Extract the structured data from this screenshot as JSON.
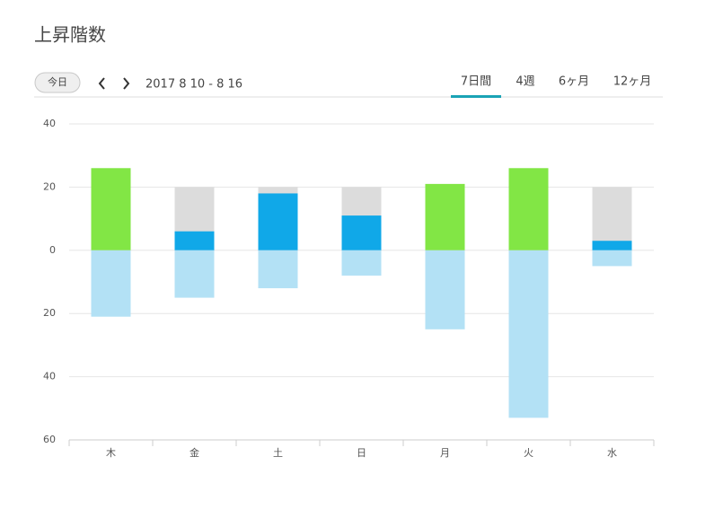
{
  "toolbar": {
    "today": "今日",
    "range": "2017 8 10 - 8 16",
    "tabs": [
      "7日間",
      "4週",
      "6ヶ月",
      "12ヶ月"
    ],
    "selected_tab": 0
  },
  "chart_data": {
    "type": "bar",
    "title": "上昇階数",
    "categories": [
      "木",
      "金",
      "土",
      "日",
      "月",
      "火",
      "水"
    ],
    "series": [
      {
        "color": "#dcdcdc",
        "values": [
          20,
          20,
          20,
          20,
          20,
          20,
          20
        ]
      },
      {
        "color": "#10a8e8",
        "goal_met_color": "#82e645",
        "values": [
          26,
          6,
          18,
          11,
          21,
          26,
          3
        ]
      },
      {
        "color": "#b3e1f5",
        "values": [
          -21,
          -15,
          -12,
          -8,
          -25,
          -53,
          -5
        ]
      }
    ],
    "ylim": [
      -60,
      40
    ],
    "yticks": [
      40,
      20,
      0,
      {
        "value": -20,
        "label": "20"
      },
      {
        "value": -40,
        "label": "40"
      },
      {
        "value": -60,
        "label": "60"
      }
    ],
    "grid": true
  }
}
